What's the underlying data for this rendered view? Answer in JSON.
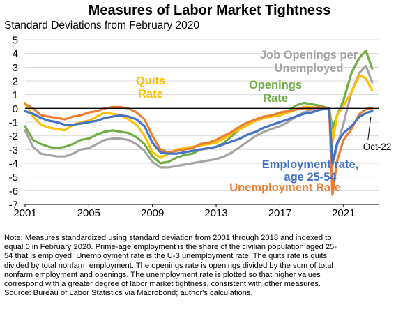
{
  "chart_data": {
    "type": "line",
    "title": "Measures of Labor Market Tightness",
    "subtitle": "Standard Deviations from February 2020",
    "xlabel": "",
    "ylabel": "",
    "xlim": [
      2001,
      2023.2
    ],
    "ylim": [
      -7,
      5
    ],
    "x_ticks": [
      2001,
      2005,
      2009,
      2013,
      2017,
      2021
    ],
    "y_ticks": [
      5,
      4,
      3,
      2,
      1,
      0,
      -1,
      -2,
      -3,
      -4,
      -5,
      -6,
      -7
    ],
    "grid": "horizontal",
    "legend": "inline labels",
    "series": [
      {
        "name": "Employment rate, age 25-54",
        "label_lines": [
          "Employment rate,",
          "age 25-54"
        ],
        "color": "#4472c4",
        "points": [
          [
            2001,
            -0.2
          ],
          [
            2001.5,
            -0.4
          ],
          [
            2002,
            -0.7
          ],
          [
            2002.5,
            -0.9
          ],
          [
            2003,
            -1.0
          ],
          [
            2003.5,
            -1.2
          ],
          [
            2004,
            -1.2
          ],
          [
            2004.5,
            -1.1
          ],
          [
            2005,
            -1.0
          ],
          [
            2005.5,
            -0.9
          ],
          [
            2006,
            -0.7
          ],
          [
            2006.5,
            -0.6
          ],
          [
            2007,
            -0.5
          ],
          [
            2007.5,
            -0.6
          ],
          [
            2008,
            -0.8
          ],
          [
            2008.5,
            -1.3
          ],
          [
            2009,
            -2.5
          ],
          [
            2009.5,
            -3.2
          ],
          [
            2010,
            -3.3
          ],
          [
            2010.5,
            -3.3
          ],
          [
            2011,
            -3.2
          ],
          [
            2011.5,
            -3.1
          ],
          [
            2012,
            -3.0
          ],
          [
            2012.5,
            -2.9
          ],
          [
            2013,
            -2.8
          ],
          [
            2013.5,
            -2.6
          ],
          [
            2014,
            -2.4
          ],
          [
            2014.5,
            -2.2
          ],
          [
            2015,
            -1.9
          ],
          [
            2015.5,
            -1.7
          ],
          [
            2016,
            -1.4
          ],
          [
            2016.5,
            -1.2
          ],
          [
            2017,
            -1.0
          ],
          [
            2017.5,
            -0.8
          ],
          [
            2018,
            -0.6
          ],
          [
            2018.5,
            -0.4
          ],
          [
            2019,
            -0.3
          ],
          [
            2019.5,
            -0.1
          ],
          [
            2020.1,
            0.0
          ],
          [
            2020.3,
            -4.0
          ],
          [
            2020.6,
            -2.5
          ],
          [
            2021,
            -1.8
          ],
          [
            2021.5,
            -1.3
          ],
          [
            2022,
            -0.6
          ],
          [
            2022.5,
            -0.3
          ],
          [
            2022.8,
            -0.2
          ]
        ]
      },
      {
        "name": "Unemployment Rate",
        "label_lines": [
          "Unemployment Rate"
        ],
        "color": "#ed7d31",
        "points": [
          [
            2001,
            0.3
          ],
          [
            2001.5,
            0.0
          ],
          [
            2002,
            -0.5
          ],
          [
            2002.5,
            -0.6
          ],
          [
            2003,
            -0.7
          ],
          [
            2003.5,
            -0.8
          ],
          [
            2004,
            -0.6
          ],
          [
            2004.5,
            -0.5
          ],
          [
            2005,
            -0.3
          ],
          [
            2005.5,
            -0.2
          ],
          [
            2006,
            0.0
          ],
          [
            2006.5,
            0.1
          ],
          [
            2007,
            0.1
          ],
          [
            2007.5,
            0.0
          ],
          [
            2008,
            -0.3
          ],
          [
            2008.5,
            -0.8
          ],
          [
            2009,
            -2.0
          ],
          [
            2009.5,
            -3.0
          ],
          [
            2010,
            -3.2
          ],
          [
            2010.5,
            -3.1
          ],
          [
            2011,
            -3.0
          ],
          [
            2011.5,
            -2.9
          ],
          [
            2012,
            -2.6
          ],
          [
            2012.5,
            -2.5
          ],
          [
            2013,
            -2.3
          ],
          [
            2013.5,
            -2.0
          ],
          [
            2014,
            -1.7
          ],
          [
            2014.5,
            -1.3
          ],
          [
            2015,
            -1.0
          ],
          [
            2015.5,
            -0.8
          ],
          [
            2016,
            -0.6
          ],
          [
            2016.5,
            -0.5
          ],
          [
            2017,
            -0.3
          ],
          [
            2017.5,
            -0.2
          ],
          [
            2018,
            -0.1
          ],
          [
            2018.5,
            0.0
          ],
          [
            2019,
            0.0
          ],
          [
            2019.5,
            0.1
          ],
          [
            2020.1,
            0.0
          ],
          [
            2020.3,
            -6.3
          ],
          [
            2020.6,
            -3.8
          ],
          [
            2021,
            -2.3
          ],
          [
            2021.5,
            -1.5
          ],
          [
            2022,
            -0.4
          ],
          [
            2022.5,
            0.0
          ],
          [
            2022.8,
            0.0
          ]
        ]
      },
      {
        "name": "Quits Rate",
        "label_lines": [
          "Quits",
          "Rate"
        ],
        "color": "#ffc000",
        "points": [
          [
            2001,
            0.4
          ],
          [
            2001.5,
            -0.6
          ],
          [
            2002,
            -1.2
          ],
          [
            2002.5,
            -1.4
          ],
          [
            2003,
            -1.5
          ],
          [
            2003.5,
            -1.6
          ],
          [
            2004,
            -1.2
          ],
          [
            2004.5,
            -1.0
          ],
          [
            2005,
            -0.9
          ],
          [
            2005.5,
            -0.6
          ],
          [
            2006,
            -0.3
          ],
          [
            2006.5,
            -0.4
          ],
          [
            2007,
            -0.5
          ],
          [
            2007.5,
            -0.8
          ],
          [
            2008,
            -1.2
          ],
          [
            2008.5,
            -2.0
          ],
          [
            2009,
            -3.2
          ],
          [
            2009.5,
            -3.6
          ],
          [
            2010,
            -3.3
          ],
          [
            2010.5,
            -3.0
          ],
          [
            2011,
            -2.9
          ],
          [
            2011.5,
            -2.8
          ],
          [
            2012,
            -2.7
          ],
          [
            2012.5,
            -2.6
          ],
          [
            2013,
            -2.5
          ],
          [
            2013.5,
            -2.2
          ],
          [
            2014,
            -1.8
          ],
          [
            2014.5,
            -1.5
          ],
          [
            2015,
            -1.2
          ],
          [
            2015.5,
            -0.9
          ],
          [
            2016,
            -0.7
          ],
          [
            2016.5,
            -0.6
          ],
          [
            2017,
            -0.5
          ],
          [
            2017.5,
            -0.3
          ],
          [
            2018,
            -0.1
          ],
          [
            2018.5,
            0.1
          ],
          [
            2019,
            0.1
          ],
          [
            2019.5,
            0.0
          ],
          [
            2020.1,
            0.0
          ],
          [
            2020.3,
            -2.5
          ],
          [
            2020.6,
            -0.5
          ],
          [
            2021,
            0.2
          ],
          [
            2021.5,
            1.2
          ],
          [
            2022,
            2.4
          ],
          [
            2022.4,
            2.2
          ],
          [
            2022.8,
            1.3
          ]
        ]
      },
      {
        "name": "Openings Rate",
        "label_lines": [
          "Openings",
          "Rate"
        ],
        "color": "#70ad47",
        "points": [
          [
            2001,
            -1.3
          ],
          [
            2001.5,
            -2.3
          ],
          [
            2002,
            -2.6
          ],
          [
            2002.5,
            -2.8
          ],
          [
            2003,
            -2.9
          ],
          [
            2003.5,
            -2.8
          ],
          [
            2004,
            -2.6
          ],
          [
            2004.5,
            -2.3
          ],
          [
            2005,
            -2.2
          ],
          [
            2005.5,
            -1.9
          ],
          [
            2006,
            -1.7
          ],
          [
            2006.5,
            -1.6
          ],
          [
            2007,
            -1.7
          ],
          [
            2007.5,
            -1.8
          ],
          [
            2008,
            -2.1
          ],
          [
            2008.5,
            -2.6
          ],
          [
            2009,
            -3.5
          ],
          [
            2009.5,
            -4.0
          ],
          [
            2010,
            -3.9
          ],
          [
            2010.5,
            -3.6
          ],
          [
            2011,
            -3.4
          ],
          [
            2011.5,
            -3.3
          ],
          [
            2012,
            -3.0
          ],
          [
            2012.5,
            -2.9
          ],
          [
            2013,
            -2.8
          ],
          [
            2013.5,
            -2.5
          ],
          [
            2014,
            -2.0
          ],
          [
            2014.5,
            -1.5
          ],
          [
            2015,
            -1.2
          ],
          [
            2015.5,
            -0.8
          ],
          [
            2016,
            -0.6
          ],
          [
            2016.5,
            -0.5
          ],
          [
            2017,
            -0.4
          ],
          [
            2017.5,
            -0.2
          ],
          [
            2018,
            0.2
          ],
          [
            2018.5,
            0.4
          ],
          [
            2019,
            0.3
          ],
          [
            2019.5,
            0.2
          ],
          [
            2020.1,
            0.0
          ],
          [
            2020.3,
            -1.5
          ],
          [
            2020.6,
            -0.5
          ],
          [
            2021,
            0.6
          ],
          [
            2021.5,
            2.6
          ],
          [
            2022,
            3.7
          ],
          [
            2022.4,
            4.2
          ],
          [
            2022.8,
            2.9
          ]
        ]
      },
      {
        "name": "Job Openings per Unemployed",
        "label_lines": [
          "Job Openings per",
          "Unemployed"
        ],
        "color": "#a5a5a5",
        "points": [
          [
            2001,
            -1.6
          ],
          [
            2001.5,
            -2.8
          ],
          [
            2002,
            -3.3
          ],
          [
            2002.5,
            -3.4
          ],
          [
            2003,
            -3.5
          ],
          [
            2003.5,
            -3.5
          ],
          [
            2004,
            -3.3
          ],
          [
            2004.5,
            -3.0
          ],
          [
            2005,
            -2.9
          ],
          [
            2005.5,
            -2.6
          ],
          [
            2006,
            -2.3
          ],
          [
            2006.5,
            -2.2
          ],
          [
            2007,
            -2.2
          ],
          [
            2007.5,
            -2.3
          ],
          [
            2008,
            -2.6
          ],
          [
            2008.5,
            -3.1
          ],
          [
            2009,
            -3.9
          ],
          [
            2009.5,
            -4.3
          ],
          [
            2010,
            -4.3
          ],
          [
            2010.5,
            -4.2
          ],
          [
            2011,
            -4.1
          ],
          [
            2011.5,
            -4.0
          ],
          [
            2012,
            -3.9
          ],
          [
            2012.5,
            -3.8
          ],
          [
            2013,
            -3.7
          ],
          [
            2013.5,
            -3.5
          ],
          [
            2014,
            -3.2
          ],
          [
            2014.5,
            -2.8
          ],
          [
            2015,
            -2.4
          ],
          [
            2015.5,
            -2.0
          ],
          [
            2016,
            -1.7
          ],
          [
            2016.5,
            -1.5
          ],
          [
            2017,
            -1.3
          ],
          [
            2017.5,
            -1.0
          ],
          [
            2018,
            -0.6
          ],
          [
            2018.5,
            -0.3
          ],
          [
            2019,
            -0.1
          ],
          [
            2019.5,
            0.0
          ],
          [
            2020.1,
            0.0
          ],
          [
            2020.3,
            -4.2
          ],
          [
            2020.6,
            -2.7
          ],
          [
            2021,
            -1.1
          ],
          [
            2021.5,
            1.2
          ],
          [
            2022,
            2.6
          ],
          [
            2022.4,
            3.1
          ],
          [
            2022.8,
            1.9
          ]
        ]
      }
    ],
    "annotations": [
      {
        "text": "Oct-22",
        "x": 2022.8
      }
    ]
  },
  "note": {
    "lines": [
      "Note: Measures standardized using standard deviation from 2001 through 2018 and indexed to",
      "equal 0 in February 2020. Prime-age employment is the share of the civilian population aged 25-",
      "54 that is employed. Unemployment rate is the U-3 unemployment rate. The quits rate is quits",
      "divided by total nonfarm employment. The openings rate is openings divided by the sum of total",
      "nonfarm employment and openings. The unemployment rate is plotted so that higher values",
      "correspond with a greater degree of labor market tightness, consistent with other measures.",
      "Source: Bureau of Labor Statistics via Macrobond; author's calculations."
    ]
  }
}
